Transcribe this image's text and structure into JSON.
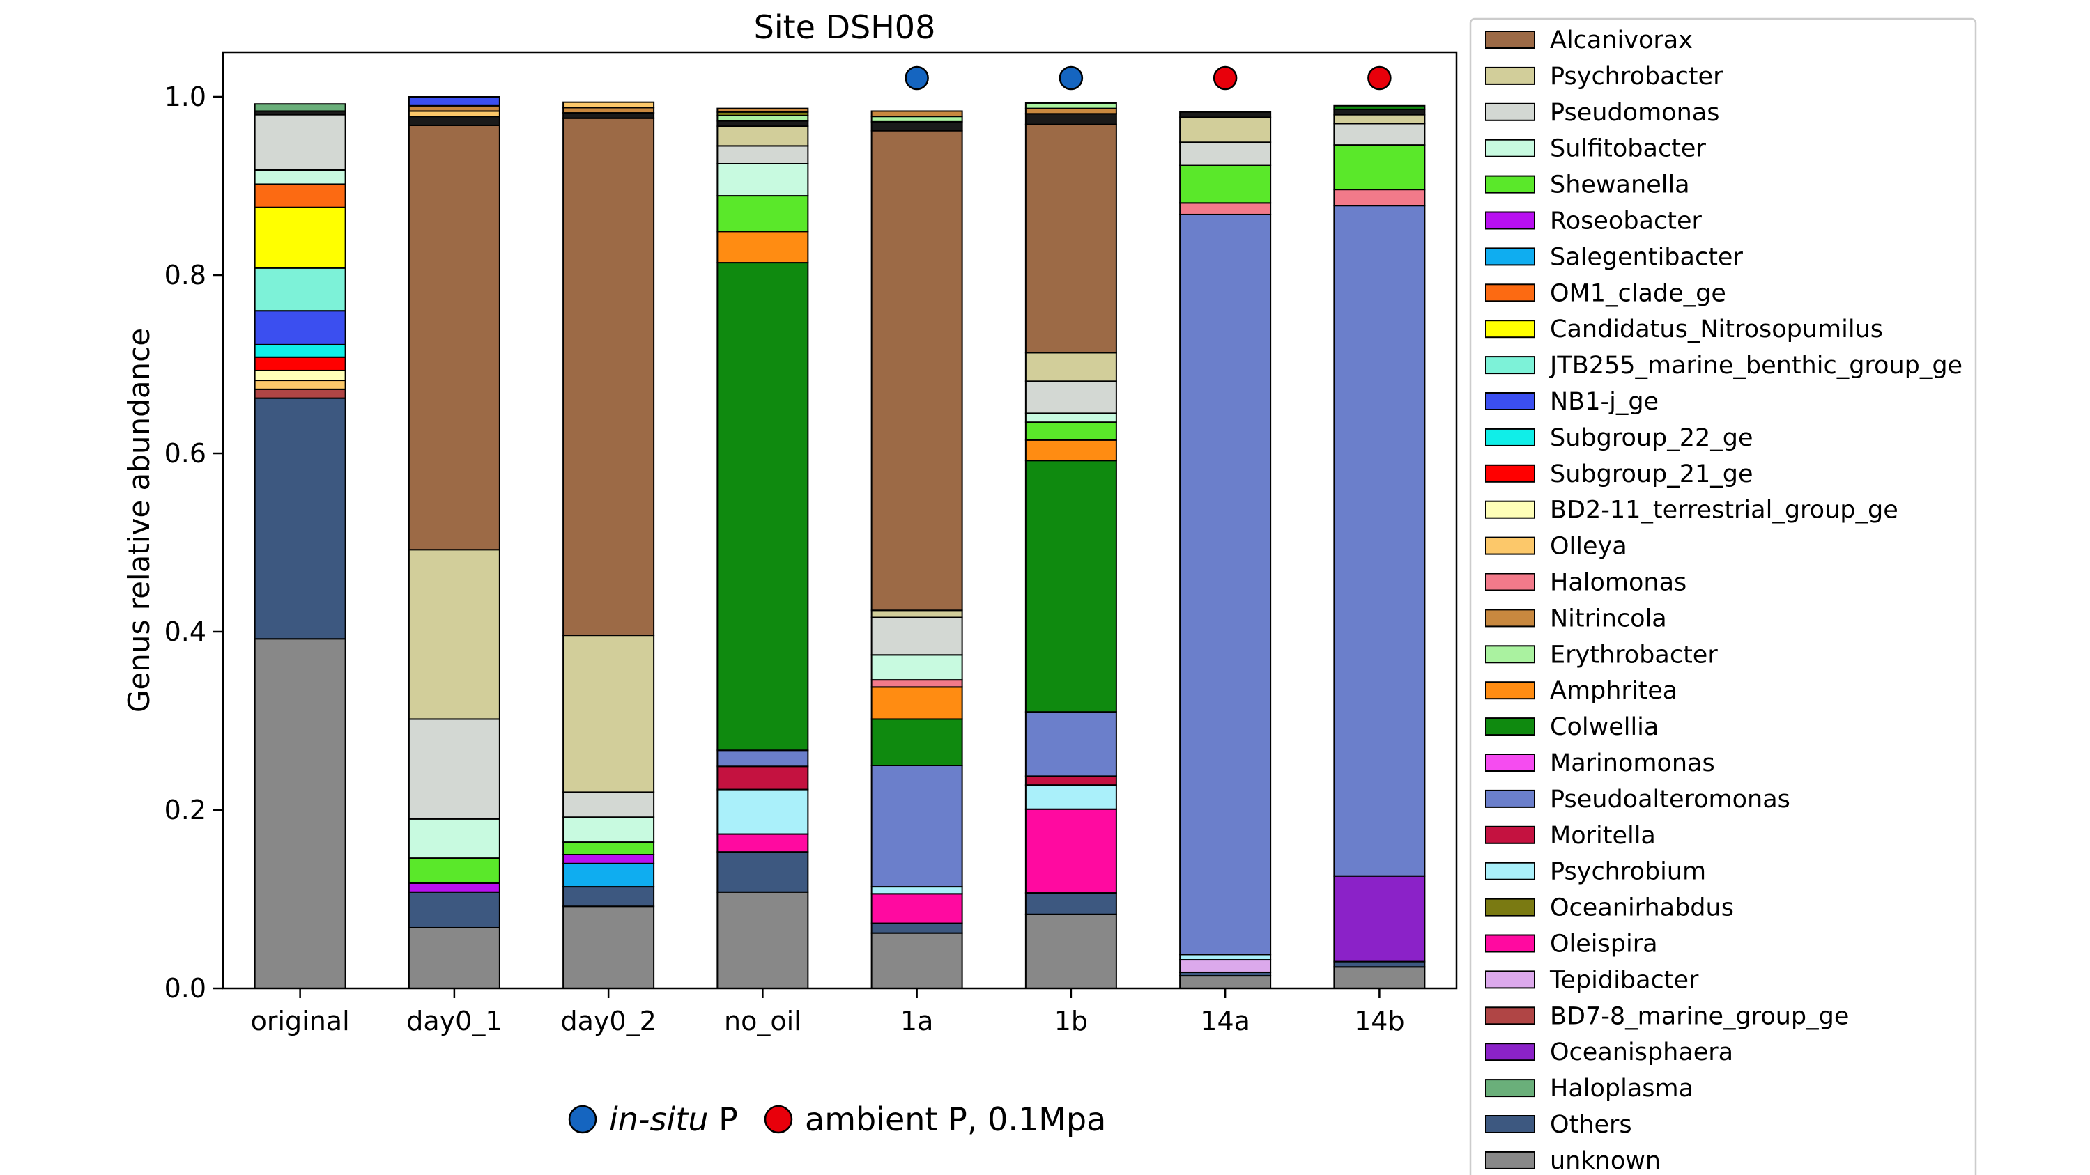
{
  "chart_data": {
    "type": "bar",
    "stacked": true,
    "title": "Site DSH08",
    "xlabel": "",
    "ylabel": "Genus relative abundance",
    "ylim": [
      0,
      1.05
    ],
    "yticks": [
      "0.0",
      "0.2",
      "0.4",
      "0.6",
      "0.8",
      "1.0"
    ],
    "categories": [
      "original",
      "day0_1",
      "day0_2",
      "no_oil",
      "1a",
      "1b",
      "14a",
      "14b"
    ],
    "markers": [
      {
        "category": "1a",
        "group": "in-situ"
      },
      {
        "category": "1b",
        "group": "in-situ"
      },
      {
        "category": "14a",
        "group": "ambient"
      },
      {
        "category": "14b",
        "group": "ambient"
      }
    ],
    "marker_legend": [
      {
        "key": "in-situ",
        "italic": "in-situ",
        "text": " P",
        "color": "#1565c0"
      },
      {
        "key": "ambient",
        "italic": "",
        "text": "ambient P, 0.1Mpa",
        "color": "#e8000b"
      }
    ],
    "legend_position": "right",
    "series": [
      {
        "name": "unknown",
        "color": "#888888",
        "values": [
          0.392,
          0.068,
          0.092,
          0.108,
          0.062,
          0.083,
          0.014,
          0.024
        ]
      },
      {
        "name": "Others",
        "color": "#3d5880",
        "values": [
          0.27,
          0.04,
          0.022,
          0.045,
          0.011,
          0.024,
          0.004,
          0.006
        ]
      },
      {
        "name": "Haloplasma",
        "color": "#6aaf7a",
        "values": [
          0,
          0,
          0,
          0,
          0,
          0,
          0,
          0
        ]
      },
      {
        "name": "Oceanisphaera",
        "color": "#8b22c8",
        "values": [
          0,
          0,
          0,
          0,
          0,
          0,
          0,
          0.096
        ]
      },
      {
        "name": "BD7-8_marine_group_ge",
        "color": "#b04545",
        "values": [
          0.01,
          0,
          0,
          0,
          0,
          0,
          0,
          0
        ]
      },
      {
        "name": "Tepidibacter",
        "color": "#dca9ec",
        "values": [
          0,
          0,
          0,
          0,
          0,
          0,
          0.014,
          0
        ]
      },
      {
        "name": "Oleispira",
        "color": "#ff0aa0",
        "values": [
          0,
          0,
          0,
          0.02,
          0.033,
          0.094,
          0,
          0
        ]
      },
      {
        "name": "Oceanirhabdus",
        "color": "#7a7a12",
        "values": [
          0,
          0,
          0,
          0,
          0,
          0,
          0,
          0
        ]
      },
      {
        "name": "Psychrobium",
        "color": "#aaf0fa",
        "values": [
          0,
          0,
          0,
          0.05,
          0.008,
          0.027,
          0.006,
          0
        ]
      },
      {
        "name": "Moritella",
        "color": "#c41240",
        "values": [
          0,
          0,
          0,
          0.026,
          0,
          0.01,
          0,
          0
        ]
      },
      {
        "name": "Pseudoalteromonas",
        "color": "#6b7fcb",
        "values": [
          0,
          0,
          0,
          0.018,
          0.136,
          0.072,
          0.83,
          0.752
        ]
      },
      {
        "name": "Marinomonas",
        "color": "#f54cf0",
        "values": [
          0,
          0,
          0,
          0,
          0,
          0,
          0,
          0
        ]
      },
      {
        "name": "Colwellia",
        "color": "#0f8a0f",
        "values": [
          0,
          0,
          0,
          0.547,
          0.052,
          0.282,
          0,
          0
        ]
      },
      {
        "name": "Amphritea",
        "color": "#ff8c12",
        "values": [
          0,
          0,
          0,
          0.035,
          0.036,
          0.023,
          0,
          0
        ]
      },
      {
        "name": "Erythrobacter",
        "color": "#aaf2a0",
        "values": [
          0,
          0,
          0,
          0,
          0,
          0,
          0,
          0
        ]
      },
      {
        "name": "Nitrincola",
        "color": "#c8883f",
        "values": [
          0,
          0,
          0,
          0,
          0,
          0,
          0,
          0
        ]
      },
      {
        "name": "Halomonas",
        "color": "#f27a8a",
        "values": [
          0,
          0,
          0,
          0,
          0.008,
          0,
          0.013,
          0.018
        ]
      },
      {
        "name": "Olleya",
        "color": "#fcc86a",
        "values": [
          0.01,
          0,
          0,
          0,
          0,
          0,
          0,
          0
        ]
      },
      {
        "name": "BD2-11_terrestrial_group_ge",
        "color": "#ffffb8",
        "values": [
          0.011,
          0,
          0,
          0,
          0,
          0,
          0,
          0
        ]
      },
      {
        "name": "Subgroup_21_ge",
        "color": "#ff0000",
        "values": [
          0.015,
          0,
          0,
          0,
          0,
          0,
          0,
          0
        ]
      },
      {
        "name": "Subgroup_22_ge",
        "color": "#10eee8",
        "values": [
          0.014,
          0,
          0,
          0,
          0,
          0,
          0,
          0
        ]
      },
      {
        "name": "NB1-j_ge",
        "color": "#3b4ff0",
        "values": [
          0.038,
          0,
          0,
          0,
          0,
          0,
          0,
          0
        ]
      },
      {
        "name": "JTB255_marine_benthic_group_ge",
        "color": "#7df2d8",
        "values": [
          0.048,
          0,
          0,
          0,
          0,
          0,
          0,
          0
        ]
      },
      {
        "name": "Candidatus_Nitrosopumilus",
        "color": "#ffff00",
        "values": [
          0.068,
          0,
          0,
          0,
          0,
          0,
          0,
          0
        ]
      },
      {
        "name": "OM1_clade_ge",
        "color": "#fc6a12",
        "values": [
          0.026,
          0,
          0,
          0,
          0,
          0,
          0,
          0
        ]
      },
      {
        "name": "Salegentibacter",
        "color": "#0fadf0",
        "values": [
          0,
          0,
          0.026,
          0,
          0,
          0,
          0,
          0
        ]
      },
      {
        "name": "Roseobacter",
        "color": "#b810f0",
        "values": [
          0,
          0.01,
          0.01,
          0,
          0,
          0,
          0,
          0
        ]
      },
      {
        "name": "Shewanella",
        "color": "#5ae82a",
        "values": [
          0,
          0.028,
          0.014,
          0.04,
          0,
          0.02,
          0.042,
          0.05
        ]
      },
      {
        "name": "Sulfitobacter",
        "color": "#c8fae0",
        "values": [
          0.016,
          0.044,
          0.028,
          0.036,
          0.028,
          0.01,
          0,
          0
        ]
      },
      {
        "name": "Pseudomonas",
        "color": "#d3d8d3",
        "values": [
          0.062,
          0.112,
          0.028,
          0.02,
          0.042,
          0.036,
          0.026,
          0.024
        ]
      },
      {
        "name": "Psychrobacter",
        "color": "#d2ce9a",
        "values": [
          0,
          0.19,
          0.176,
          0.022,
          0.008,
          0.032,
          0.028,
          0.01
        ]
      },
      {
        "name": "Alcanivorax",
        "color": "#9c6a46",
        "values": [
          0,
          0.476,
          0.58,
          0,
          0.538,
          0.256,
          0,
          0
        ]
      }
    ],
    "stack_remainder": [
      {
        "category": "original",
        "colors": [
          "#1a1a1a",
          "#6aaf7a"
        ],
        "values": [
          0.004,
          0.008
        ]
      },
      {
        "category": "day0_1",
        "colors": [
          "#1a1a1a",
          "#fcc86a",
          "#c8883f",
          "#3b4ff0"
        ],
        "values": [
          0.01,
          0.006,
          0.006,
          0.01
        ]
      },
      {
        "category": "day0_2",
        "colors": [
          "#1a1a1a",
          "#c8883f",
          "#fcc86a"
        ],
        "values": [
          0.006,
          0.006,
          0.006
        ]
      },
      {
        "category": "no_oil",
        "colors": [
          "#1a1a1a",
          "#aaf2a0",
          "#7a7a12",
          "#c8883f"
        ],
        "values": [
          0.006,
          0.006,
          0.004,
          0.004
        ]
      },
      {
        "category": "1a",
        "colors": [
          "#1a1a1a",
          "#aaf2a0",
          "#c8883f"
        ],
        "values": [
          0.01,
          0.006,
          0.006
        ]
      },
      {
        "category": "1b",
        "colors": [
          "#1a1a1a",
          "#c8883f",
          "#aaf2a0"
        ],
        "values": [
          0.012,
          0.006,
          0.006
        ]
      },
      {
        "category": "14a",
        "colors": [
          "#1a1a1a"
        ],
        "values": [
          0.006
        ]
      },
      {
        "category": "14b",
        "colors": [
          "#1a1a1a",
          "#0f8a0f"
        ],
        "values": [
          0.006,
          0.004
        ]
      }
    ]
  }
}
